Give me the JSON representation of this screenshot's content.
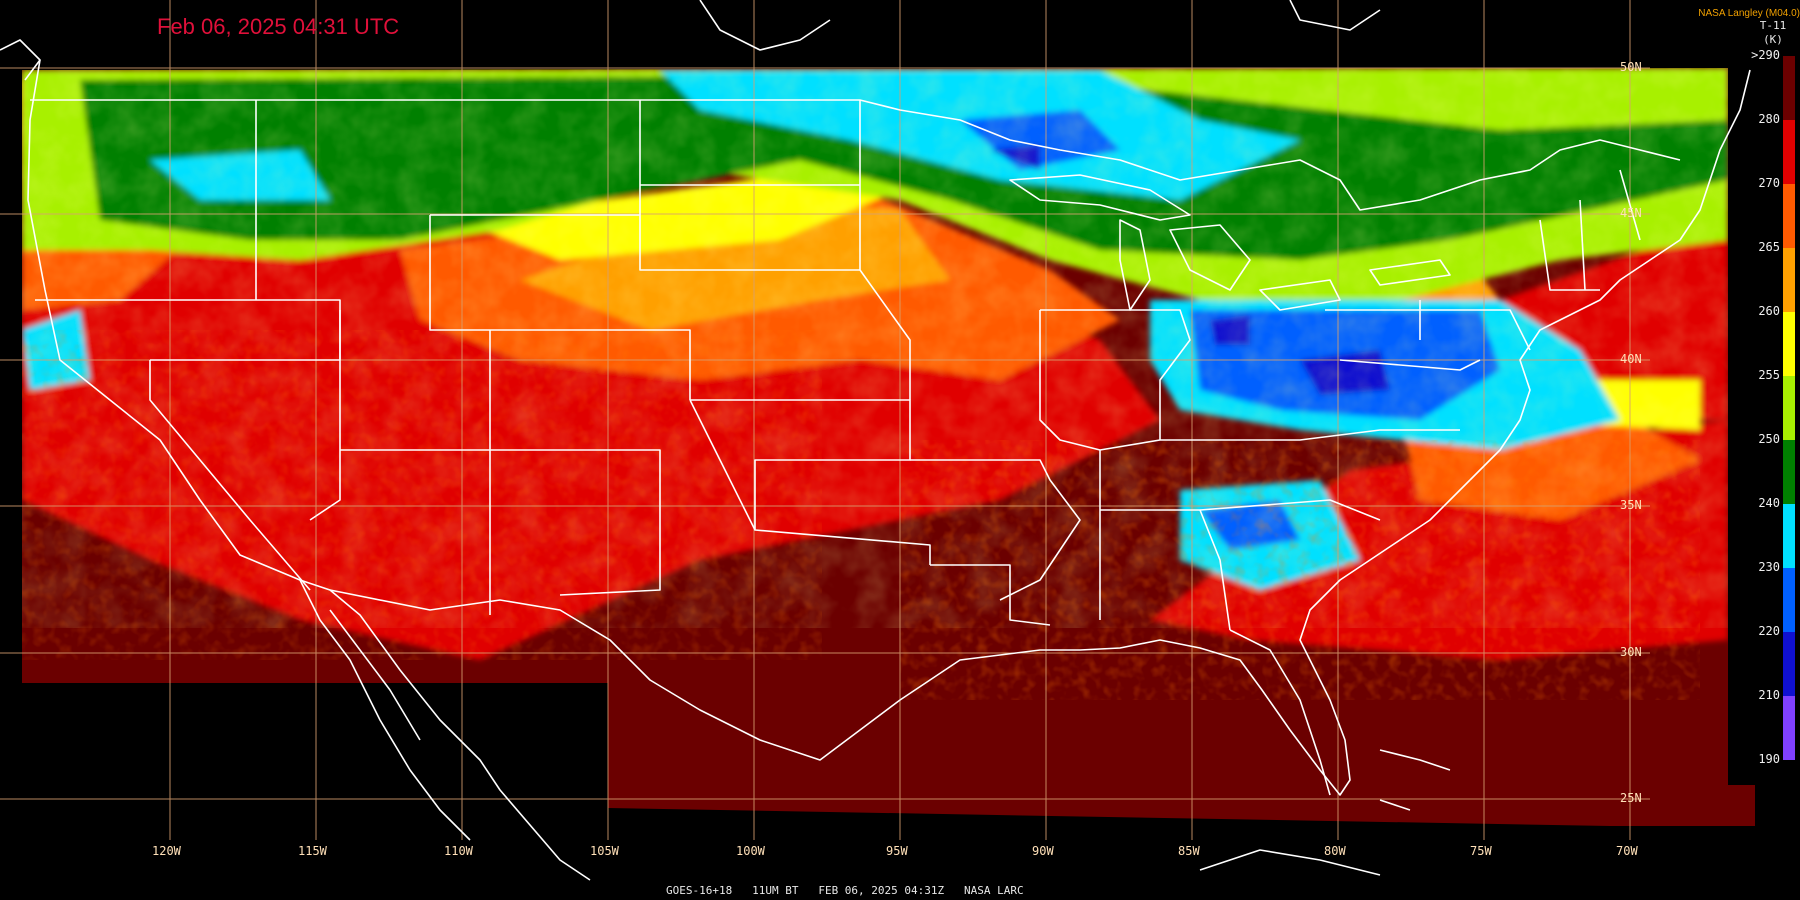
{
  "header": {
    "timestamp": "Feb 06, 2025 04:31 UTC",
    "brand": "NASA Langley (M04.0)"
  },
  "colorbar": {
    "title": "T-11",
    "unit": "(K)",
    "ticks": [
      ">290",
      "280",
      "270",
      "265",
      "260",
      "255",
      "250",
      "240",
      "230",
      "220",
      "210",
      "190"
    ],
    "swatches": [
      "#6b0000",
      "#e00000",
      "#ff5a00",
      "#ffa000",
      "#ffff00",
      "#a8f000",
      "#008000",
      "#00e0ff",
      "#0060ff",
      "#1010d0",
      "#8040ff"
    ],
    "colors": {
      "dark_red": "#6b0000",
      "red": "#e00000",
      "orange": "#ff5a00",
      "light_orange": "#ffa000",
      "yellow": "#ffff00",
      "lime": "#a8f000",
      "green": "#008000",
      "cyan": "#00e0ff",
      "blue": "#0060ff",
      "dark_blue": "#1010d0",
      "purple": "#8040ff"
    }
  },
  "longitude_labels": [
    "120W",
    "115W",
    "110W",
    "105W",
    "100W",
    "95W",
    "90W",
    "85W",
    "80W",
    "75W",
    "70W"
  ],
  "latitude_labels": [
    "50N",
    "45N",
    "40N",
    "35N",
    "30N",
    "25N"
  ],
  "footer": "GOES-16+18   11UM BT   FEB 06, 2025 04:31Z   NASA LARC"
}
